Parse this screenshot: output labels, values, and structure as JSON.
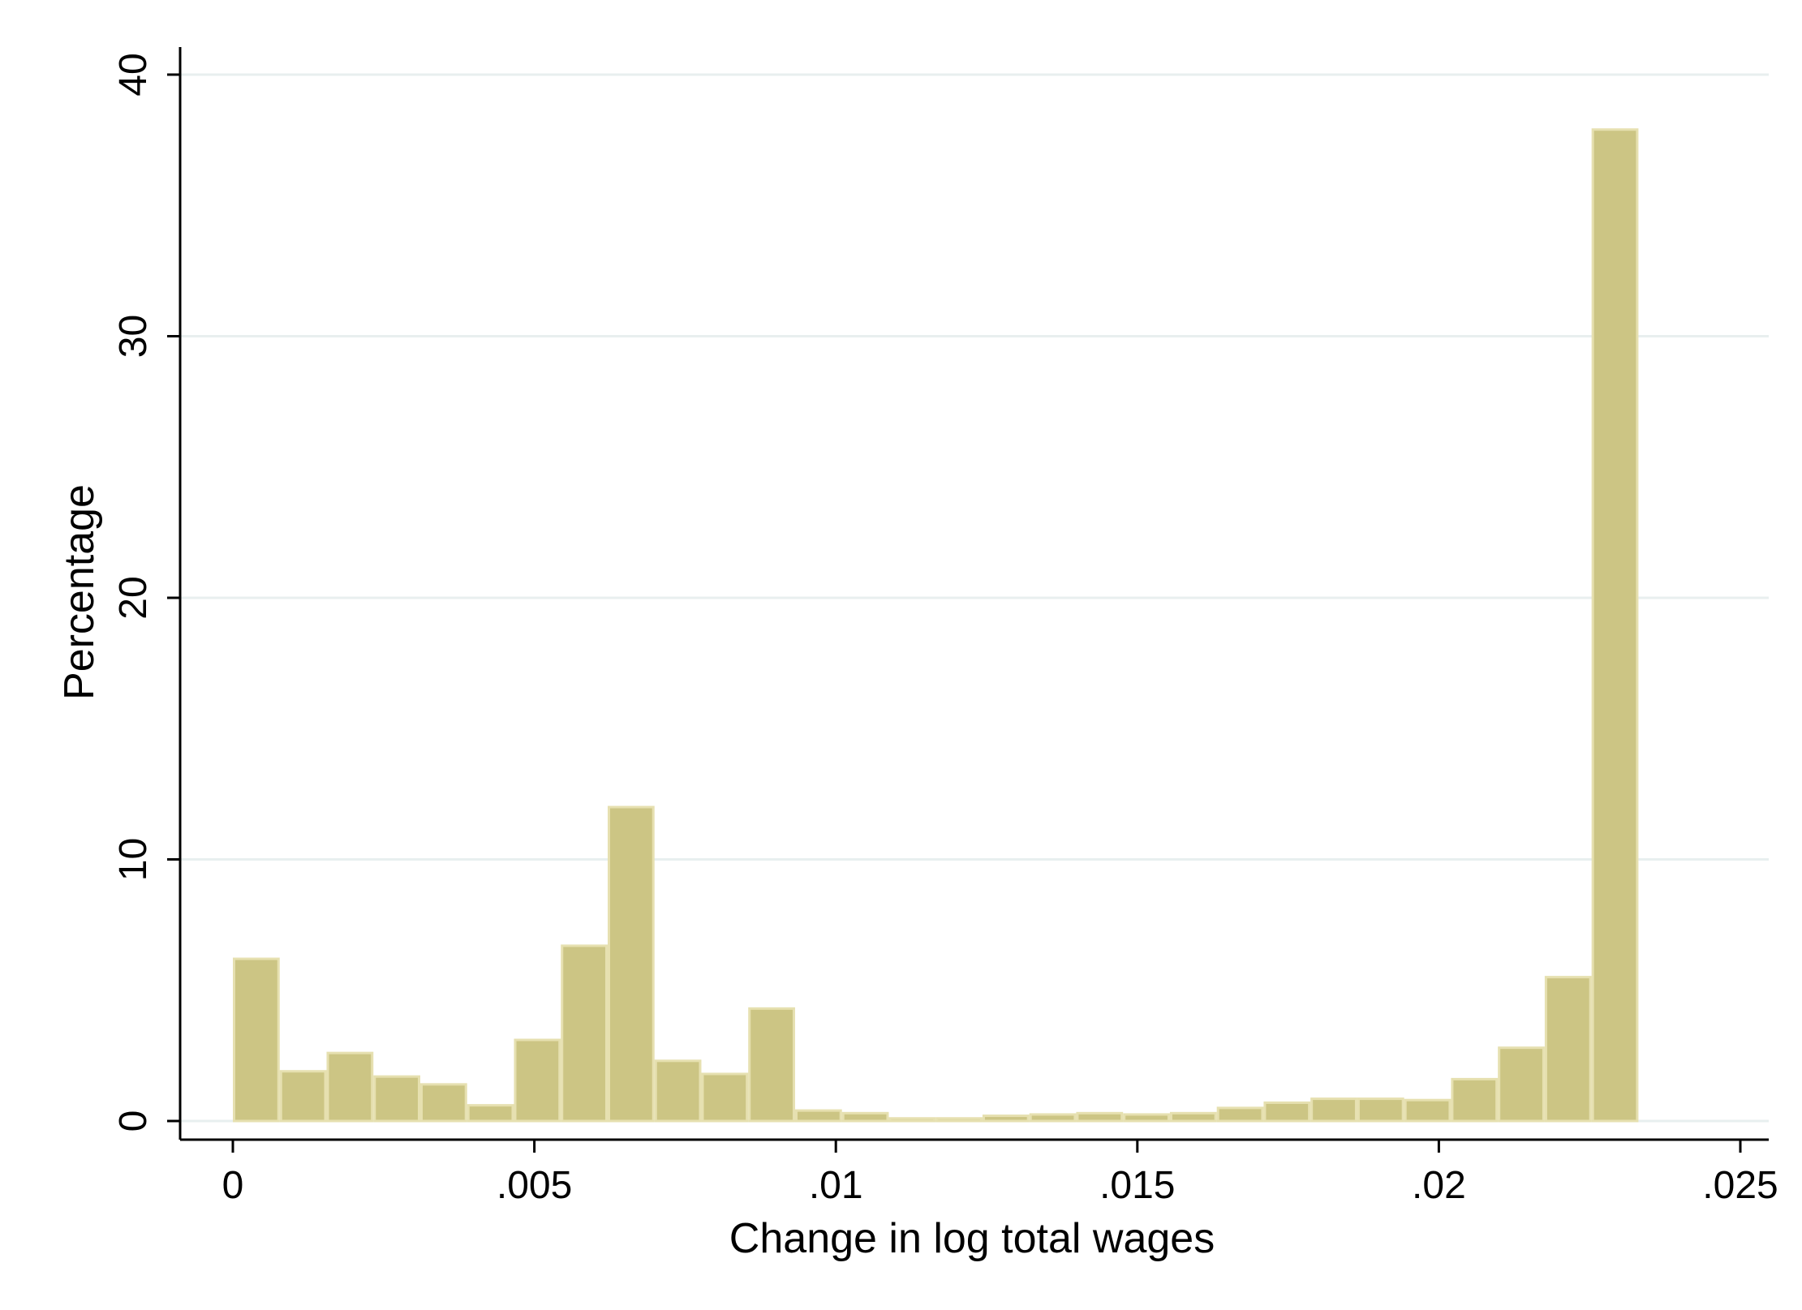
{
  "chart_data": {
    "type": "bar",
    "subtype": "histogram",
    "title": "",
    "xlabel": "Change in log total wages",
    "ylabel": "Percentage",
    "xlim": [
      0,
      0.025
    ],
    "ylim": [
      0,
      40
    ],
    "x_ticks": [
      0,
      0.005,
      0.01,
      0.015,
      0.02,
      0.025
    ],
    "x_tick_labels": [
      "0",
      ".005",
      ".01",
      ".015",
      ".02",
      ".025"
    ],
    "y_ticks": [
      0,
      10,
      20,
      30,
      40
    ],
    "y_tick_labels": [
      "0",
      "10",
      "20",
      "30",
      "40"
    ],
    "grid": "horizontal",
    "legend": "none",
    "bar_color": "#ccc584",
    "bar_edge_color": "#e6e0b0",
    "grid_color": "#e8efef",
    "bin_width": 0.000777,
    "bin_starts": [
      0,
      0.000777,
      0.001554,
      0.002331,
      0.003108,
      0.003885,
      0.004662,
      0.005439,
      0.006216,
      0.006993,
      0.00777,
      0.008547,
      0.009324,
      0.010101,
      0.010878,
      0.011655,
      0.012432,
      0.013209,
      0.013986,
      0.014763,
      0.01554,
      0.016317,
      0.017094,
      0.017871,
      0.018648,
      0.019425,
      0.020202,
      0.020979,
      0.021756,
      0.022533
    ],
    "values": [
      6.2,
      1.9,
      2.6,
      1.7,
      1.4,
      0.6,
      3.1,
      6.7,
      12.0,
      2.3,
      1.8,
      4.3,
      0.4,
      0.3,
      0.1,
      0.1,
      0.2,
      0.25,
      0.3,
      0.25,
      0.3,
      0.5,
      0.7,
      0.85,
      0.85,
      0.8,
      1.6,
      2.8,
      5.5,
      37.9
    ]
  }
}
